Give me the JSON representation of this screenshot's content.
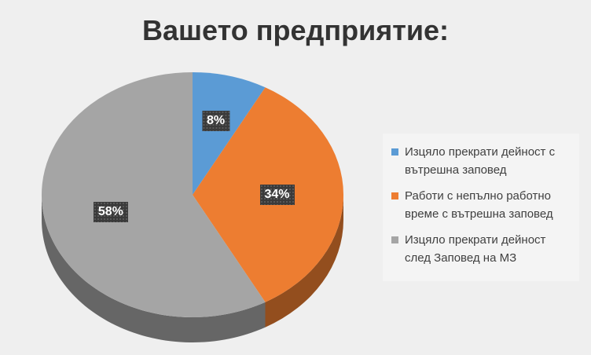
{
  "chart_data": {
    "type": "pie",
    "title": "Вашето предприятие:",
    "legend_position": "right",
    "slices": [
      {
        "label": "Изцяло прекрати дейност с вътрешна заповед",
        "value": 8,
        "display": "8%",
        "color": "#5b9bd5"
      },
      {
        "label": "Работи с непълно работно време с вътрешна заповед",
        "value": 34,
        "display": "34%",
        "color": "#ed7d31"
      },
      {
        "label": "Изцяло прекрати дейност след Заповед на МЗ",
        "value": 58,
        "display": "58%",
        "color": "#a5a5a5"
      }
    ]
  }
}
